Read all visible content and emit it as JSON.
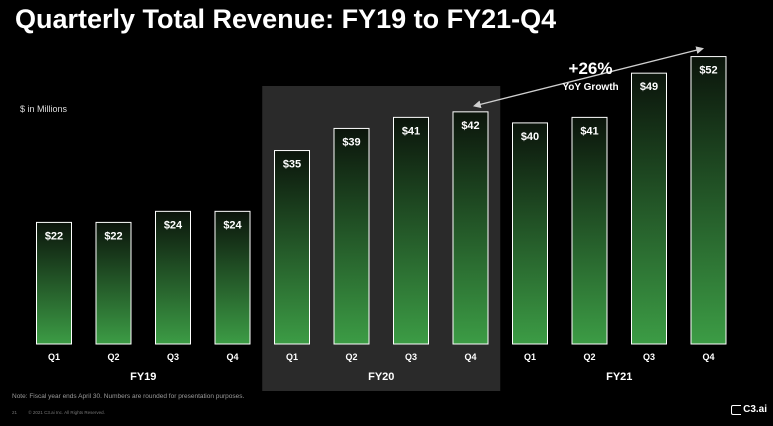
{
  "title": "Quarterly Total Revenue: FY19 to FY21-Q4",
  "units_label": "$ in Millions",
  "chart_data": {
    "type": "bar",
    "title": "Quarterly Total Revenue: FY19 to FY21-Q4",
    "ylabel": "$ in Millions",
    "categories": [
      "Q1",
      "Q2",
      "Q3",
      "Q4",
      "Q1",
      "Q2",
      "Q3",
      "Q4",
      "Q1",
      "Q2",
      "Q3",
      "Q4"
    ],
    "groups": [
      {
        "label": "FY19",
        "start": 0,
        "end": 3,
        "highlight": false
      },
      {
        "label": "FY20",
        "start": 4,
        "end": 7,
        "highlight": true
      },
      {
        "label": "FY21",
        "start": 8,
        "end": 11,
        "highlight": false
      }
    ],
    "values": [
      22,
      22,
      24,
      24,
      35,
      39,
      41,
      42,
      40,
      41,
      49,
      52
    ],
    "data_labels": [
      "$22",
      "$22",
      "$24",
      "$24",
      "$35",
      "$39",
      "$41",
      "$42",
      "$40",
      "$41",
      "$49",
      "$52"
    ],
    "ylim": [
      0,
      55
    ],
    "annotation": {
      "headline": "+26%",
      "subtext": "YoY Growth",
      "from_index": 7,
      "to_index": 11
    },
    "colors": {
      "bar_top": "#0b140b",
      "bar_bottom": "#3c9c45",
      "highlight_band": "#2a2a2a",
      "bar_border": "#ffffff"
    }
  },
  "footnote": "Note: Fiscal year ends April 30. Numbers are rounded for presentation purposes.",
  "footer": {
    "page_number": "21",
    "copyright": "© 2021 C3.ai Inc. All Rights Reserved."
  },
  "logo_text": "C3.ai"
}
